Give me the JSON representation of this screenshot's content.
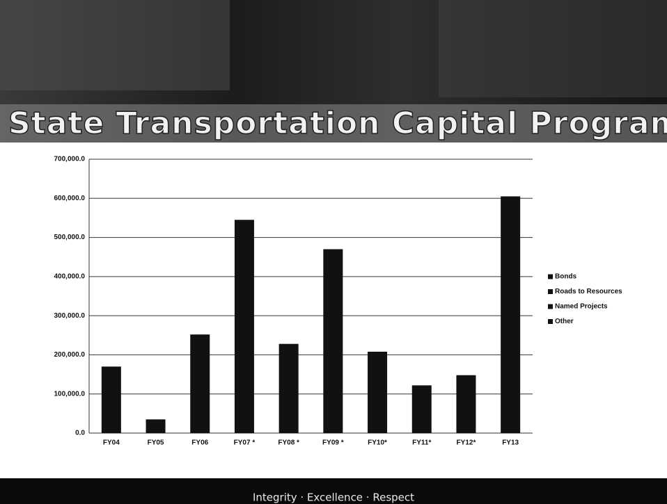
{
  "chart_data": {
    "type": "bar",
    "title": "State Transportation Capital Program",
    "categories": [
      "FY04",
      "FY05",
      "FY06",
      "FY07 *",
      "FY08 *",
      "FY09 *",
      "FY10*",
      "FY11*",
      "FY12*",
      "FY13"
    ],
    "series": [
      {
        "name": "Bonds",
        "color": "#111111",
        "values": [
          170000,
          35000,
          252000,
          545000,
          228000,
          470000,
          208000,
          122000,
          148000,
          605000
        ]
      },
      {
        "name": "Roads to Resources",
        "color": "#111111",
        "values": [
          null,
          null,
          null,
          null,
          null,
          null,
          null,
          null,
          null,
          null
        ]
      },
      {
        "name": "Named Projects",
        "color": "#111111",
        "values": [
          null,
          null,
          null,
          null,
          null,
          null,
          null,
          null,
          null,
          null
        ]
      },
      {
        "name": "Other",
        "color": "#111111",
        "values": [
          null,
          null,
          null,
          null,
          null,
          null,
          null,
          null,
          null,
          null
        ]
      }
    ],
    "ylim": [
      0,
      700000
    ],
    "yticks": [
      {
        "value": 0,
        "label": "0.0"
      },
      {
        "value": 100000,
        "label": "100,000.0"
      },
      {
        "value": 200000,
        "label": "200,000.0"
      },
      {
        "value": 300000,
        "label": "300,000.0"
      },
      {
        "value": 400000,
        "label": "400,000.0"
      },
      {
        "value": 500000,
        "label": "500,000.0"
      },
      {
        "value": 600000,
        "label": "600,000.0"
      },
      {
        "value": 700000,
        "label": "700,000.0"
      }
    ],
    "grid": true,
    "legend": "right"
  },
  "footer": "Integrity · Excellence · Respect"
}
